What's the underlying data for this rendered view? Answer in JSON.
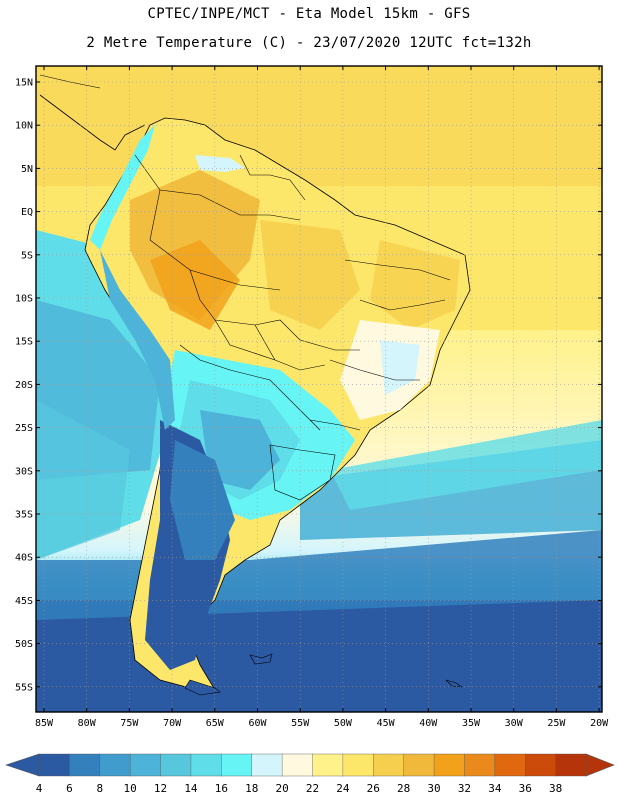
{
  "header": {
    "line1": "CPTEC/INPE/MCT -  Eta Model 15km - GFS",
    "line2": "2 Metre Temperature (C) - 23/07/2020 12UTC fct=132h"
  },
  "axes": {
    "lat_labels": [
      "15N",
      "10N",
      "5N",
      "EQ",
      "5S",
      "10S",
      "15S",
      "20S",
      "25S",
      "30S",
      "35S",
      "40S",
      "45S",
      "50S",
      "55S"
    ],
    "lon_labels": [
      "85W",
      "80W",
      "75W",
      "70W",
      "65W",
      "60W",
      "55W",
      "50W",
      "45W",
      "40W",
      "35W",
      "30W",
      "25W",
      "20W"
    ]
  },
  "colorbar": {
    "labels": [
      "4",
      "6",
      "8",
      "10",
      "12",
      "14",
      "16",
      "18",
      "20",
      "22",
      "24",
      "26",
      "28",
      "30",
      "32",
      "34",
      "36",
      "38"
    ],
    "colors": [
      "#2b59a2",
      "#3380bd",
      "#3f9ccc",
      "#4db3d8",
      "#57c7de",
      "#5fdde8",
      "#66f4f4",
      "#d4f5fc",
      "#fff9e0",
      "#fff28a",
      "#fde76a",
      "#f6cf4e",
      "#f0b93b",
      "#f2a21a",
      "#ea8a1c",
      "#e0680e",
      "#cc4a0a",
      "#b53409"
    ],
    "left_arrow_color": "#2b59a2",
    "right_arrow_color": "#b53409"
  },
  "legend_colors": {
    "ocean_deep": "#2b59a2",
    "ocean_mid": "#4db3d8",
    "ocean_warm": "#fde76a",
    "land_hot": "#f0b93b",
    "land_warm": "#fde76a",
    "andes_cold": "#66f4f4",
    "patagonia": "#2b59a2"
  }
}
